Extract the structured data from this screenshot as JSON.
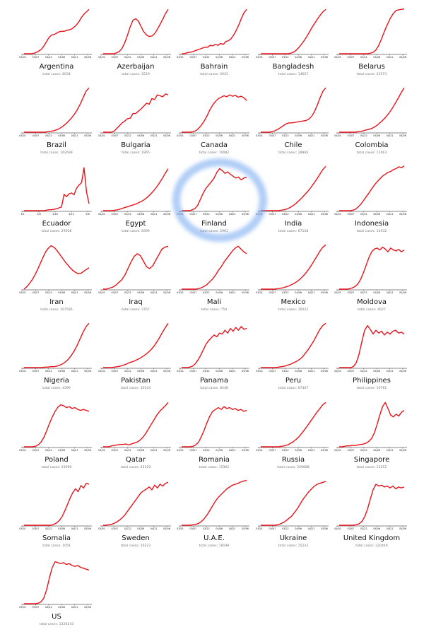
{
  "chart_data": {
    "type": "line",
    "color": "#e8131b",
    "highlight_color": "#7ab0f0",
    "highlighted": "Finland",
    "default_ticks": [
      "03/01",
      "03/07",
      "03/22",
      "04/06",
      "04/21",
      "05/06"
    ],
    "panels": [
      {
        "name": "Argentina",
        "total": "total cases: 6034",
        "y": [
          0,
          0,
          0,
          0,
          1,
          3,
          6,
          10,
          17,
          26,
          35,
          40,
          41,
          44,
          47,
          48,
          48,
          50,
          51,
          53,
          57,
          62,
          69,
          78,
          85,
          90,
          95
        ]
      },
      {
        "name": "Azerbaijan",
        "total": "total cases: 2519",
        "y": [
          0,
          0,
          0,
          0,
          0,
          2,
          5,
          12,
          24,
          40,
          58,
          72,
          75,
          70,
          58,
          47,
          40,
          37,
          38,
          43,
          52,
          63,
          74,
          86,
          95
        ]
      },
      {
        "name": "Bahrain",
        "total": "total cases: 4941",
        "y": [
          0,
          0,
          2,
          3,
          4,
          6,
          8,
          10,
          12,
          14,
          14,
          18,
          17,
          20,
          18,
          22,
          20,
          26,
          28,
          32,
          40,
          50,
          62,
          76,
          88,
          95
        ]
      },
      {
        "name": "Bangladesh",
        "total": "total cases: 14657",
        "y": [
          0,
          0,
          0,
          0,
          0,
          0,
          0,
          0,
          0,
          0,
          0,
          1,
          3,
          7,
          13,
          20,
          28,
          37,
          47,
          57,
          66,
          75,
          83,
          90,
          95
        ]
      },
      {
        "name": "Belarus",
        "total": "total cases: 22973",
        "y": [
          0,
          0,
          0,
          0,
          0,
          0,
          0,
          0,
          0,
          0,
          0,
          1,
          3,
          8,
          18,
          32,
          48,
          62,
          75,
          85,
          92,
          94,
          95,
          96
        ]
      },
      {
        "name": "Brazil",
        "total": "total cases: 162699",
        "y": [
          0,
          0,
          0,
          0,
          0,
          0,
          0,
          0,
          1,
          2,
          3,
          5,
          8,
          12,
          17,
          23,
          30,
          38,
          48,
          60,
          74,
          88,
          95
        ]
      },
      {
        "name": "Bulgaria",
        "total": "total cases: 1965",
        "y": [
          0,
          0,
          0,
          0,
          2,
          8,
          14,
          20,
          24,
          29,
          30,
          40,
          40,
          45,
          50,
          56,
          62,
          60,
          72,
          70,
          80,
          78,
          76,
          82,
          80
        ]
      },
      {
        "name": "Canada",
        "total": "total cases: 70082",
        "y": [
          0,
          0,
          0,
          0,
          1,
          3,
          8,
          15,
          24,
          35,
          48,
          58,
          66,
          72,
          75,
          78,
          76,
          80,
          77,
          79,
          75,
          77,
          74,
          68
        ]
      },
      {
        "name": "Chile",
        "total": "total cases: 28866",
        "y": [
          0,
          0,
          0,
          0,
          1,
          3,
          6,
          10,
          14,
          18,
          20,
          20,
          21,
          22,
          23,
          24,
          25,
          28,
          34,
          44,
          58,
          74,
          88,
          95
        ]
      },
      {
        "name": "Colombia",
        "total": "total cases: 11063",
        "y": [
          0,
          0,
          0,
          0,
          0,
          0,
          0,
          1,
          2,
          3,
          5,
          6,
          8,
          11,
          15,
          20,
          25,
          31,
          38,
          46,
          55,
          65,
          75,
          86,
          95
        ]
      },
      {
        "name": "Ecuador",
        "total": "total cases: 29508",
        "ticks": [
          "3/1",
          "3/6",
          "3/16",
          "4/15",
          "5/6"
        ],
        "y": [
          0,
          0,
          0,
          0,
          0,
          0,
          0,
          0,
          0,
          1,
          2,
          2,
          3,
          4,
          6,
          8,
          35,
          30,
          36,
          38,
          34,
          48,
          55,
          60,
          92,
          40,
          15
        ]
      },
      {
        "name": "Egypt",
        "total": "total cases: 8399",
        "y": [
          0,
          0,
          0,
          0,
          1,
          2,
          4,
          6,
          8,
          10,
          12,
          14,
          17,
          20,
          24,
          29,
          35,
          42,
          50,
          59,
          69,
          80,
          90
        ]
      },
      {
        "name": "Finland",
        "total": "total cases: 5961",
        "y": [
          0,
          0,
          0,
          0,
          2,
          5,
          12,
          25,
          38,
          48,
          55,
          62,
          70,
          82,
          90,
          86,
          80,
          83,
          78,
          74,
          70,
          72,
          66,
          70,
          72
        ]
      },
      {
        "name": "India",
        "total": "total cases: 67158",
        "y": [
          0,
          0,
          0,
          0,
          0,
          0,
          0,
          1,
          2,
          4,
          7,
          11,
          16,
          22,
          28,
          35,
          42,
          50,
          59,
          68,
          78,
          88,
          95
        ]
      },
      {
        "name": "Indonesia",
        "total": "total cases: 14032",
        "y": [
          0,
          0,
          0,
          0,
          0,
          1,
          3,
          8,
          14,
          22,
          30,
          38,
          47,
          55,
          62,
          68,
          74,
          78,
          82,
          84,
          88,
          90,
          94,
          92,
          96
        ]
      },
      {
        "name": "Iran",
        "total": "total cases: 107585",
        "y": [
          0,
          5,
          12,
          20,
          30,
          42,
          55,
          68,
          80,
          88,
          93,
          90,
          84,
          76,
          68,
          60,
          53,
          46,
          40,
          36,
          33,
          34,
          38,
          42,
          46
        ]
      },
      {
        "name": "Iraq",
        "total": "total cases: 2767",
        "y": [
          0,
          0,
          2,
          4,
          8,
          14,
          20,
          30,
          44,
          58,
          70,
          76,
          72,
          60,
          48,
          44,
          50,
          62,
          74,
          86,
          90,
          92
        ]
      },
      {
        "name": "Mali",
        "total": "total cases: 754",
        "y": [
          0,
          0,
          0,
          0,
          0,
          0,
          1,
          3,
          6,
          10,
          16,
          22,
          30,
          40,
          48,
          58,
          66,
          74,
          82,
          88,
          92,
          86,
          80,
          76
        ]
      },
      {
        "name": "Mexico",
        "total": "total cases: 35022",
        "y": [
          0,
          0,
          0,
          0,
          0,
          0,
          1,
          2,
          3,
          5,
          7,
          10,
          13,
          17,
          22,
          28,
          35,
          43,
          52,
          62,
          72,
          82,
          90,
          95
        ]
      },
      {
        "name": "Moldova",
        "total": "total cases: 4927",
        "y": [
          0,
          0,
          0,
          0,
          1,
          3,
          6,
          12,
          22,
          36,
          52,
          68,
          80,
          86,
          88,
          84,
          90,
          86,
          80,
          88,
          84,
          82,
          85,
          80,
          84
        ]
      },
      {
        "name": "Nigeria",
        "total": "total cases: 4399",
        "y": [
          0,
          0,
          0,
          0,
          0,
          0,
          0,
          1,
          1,
          2,
          2,
          3,
          5,
          8,
          12,
          18,
          26,
          36,
          48,
          62,
          76,
          88,
          95
        ]
      },
      {
        "name": "Pakistan",
        "total": "total cases: 30334",
        "y": [
          0,
          0,
          0,
          0,
          1,
          2,
          3,
          5,
          7,
          10,
          12,
          14,
          17,
          20,
          24,
          28,
          33,
          39,
          46,
          55,
          65,
          76,
          86,
          95
        ]
      },
      {
        "name": "Panama",
        "total": "total cases: 8448",
        "y": [
          0,
          0,
          0,
          1,
          3,
          8,
          16,
          26,
          38,
          50,
          58,
          64,
          70,
          66,
          74,
          72,
          80,
          74,
          84,
          78,
          86,
          80,
          88,
          82,
          84
        ]
      },
      {
        "name": "Peru",
        "total": "total cases: 67307",
        "y": [
          0,
          0,
          0,
          0,
          0,
          0,
          1,
          2,
          3,
          5,
          7,
          10,
          13,
          17,
          22,
          30,
          38,
          48,
          58,
          70,
          82,
          90,
          95
        ]
      },
      {
        "name": "Philippines",
        "total": "total cases: 10761",
        "y": [
          0,
          0,
          0,
          0,
          0,
          2,
          10,
          28,
          55,
          80,
          90,
          82,
          72,
          80,
          74,
          78,
          70,
          76,
          72,
          78,
          80,
          74,
          76,
          72
        ]
      },
      {
        "name": "Poland",
        "total": "total cases: 15996",
        "y": [
          0,
          0,
          0,
          0,
          1,
          4,
          10,
          20,
          34,
          50,
          64,
          76,
          85,
          90,
          88,
          84,
          86,
          82,
          84,
          80,
          78,
          80,
          78,
          76
        ]
      },
      {
        "name": "Qatar",
        "total": "total cases: 22520",
        "y": [
          0,
          0,
          0,
          2,
          3,
          4,
          5,
          5,
          6,
          4,
          6,
          8,
          10,
          14,
          20,
          28,
          38,
          48,
          58,
          68,
          76,
          82,
          88,
          95
        ]
      },
      {
        "name": "Romania",
        "total": "total cases: 15362",
        "y": [
          0,
          0,
          0,
          0,
          1,
          4,
          10,
          22,
          36,
          52,
          66,
          76,
          80,
          84,
          80,
          86,
          82,
          84,
          80,
          82,
          78,
          80,
          76,
          78
        ]
      },
      {
        "name": "Russia",
        "total": "total cases: 209688",
        "y": [
          0,
          0,
          0,
          0,
          0,
          0,
          0,
          1,
          2,
          4,
          7,
          11,
          16,
          22,
          30,
          38,
          47,
          56,
          65,
          74,
          82,
          90,
          95
        ]
      },
      {
        "name": "Singapore",
        "total": "total cases: 23251",
        "y": [
          0,
          0,
          1,
          2,
          2,
          3,
          3,
          4,
          5,
          6,
          8,
          12,
          18,
          30,
          48,
          68,
          86,
          95,
          82,
          68,
          64,
          70,
          66,
          74,
          78
        ]
      },
      {
        "name": "Somalia",
        "total": "total cases: 1054",
        "y": [
          0,
          0,
          0,
          0,
          0,
          0,
          0,
          0,
          0,
          0,
          0,
          2,
          5,
          10,
          18,
          30,
          44,
          58,
          70,
          78,
          72,
          85,
          80,
          90,
          88
        ]
      },
      {
        "name": "Sweden",
        "total": "total cases: 26322",
        "y": [
          0,
          0,
          1,
          2,
          4,
          7,
          11,
          16,
          22,
          30,
          38,
          46,
          54,
          62,
          70,
          74,
          78,
          82,
          76,
          86,
          80,
          88,
          84,
          90,
          92
        ]
      },
      {
        "name": "U.A.E.",
        "total": "total cases: 18198",
        "y": [
          0,
          0,
          0,
          0,
          1,
          2,
          4,
          8,
          14,
          22,
          32,
          42,
          52,
          60,
          66,
          72,
          78,
          82,
          86,
          88,
          90,
          93,
          95,
          96
        ]
      },
      {
        "name": "Ukraine",
        "total": "total cases: 15232",
        "y": [
          0,
          0,
          0,
          0,
          0,
          0,
          1,
          3,
          6,
          10,
          15,
          20,
          28,
          36,
          46,
          56,
          64,
          72,
          78,
          84,
          88,
          90,
          92,
          94
        ]
      },
      {
        "name": "United Kingdom",
        "total": "total cases: 220449",
        "y": [
          0,
          0,
          0,
          0,
          0,
          0,
          1,
          3,
          8,
          18,
          34,
          56,
          76,
          88,
          84,
          86,
          82,
          84,
          80,
          84,
          78,
          82,
          80,
          82
        ]
      },
      {
        "name": "US",
        "total": "total cases: 1329243",
        "y": [
          0,
          0,
          0,
          0,
          0,
          1,
          4,
          12,
          30,
          56,
          78,
          90,
          88,
          86,
          88,
          84,
          86,
          82,
          80,
          82,
          78,
          76,
          74,
          72
        ]
      }
    ]
  }
}
